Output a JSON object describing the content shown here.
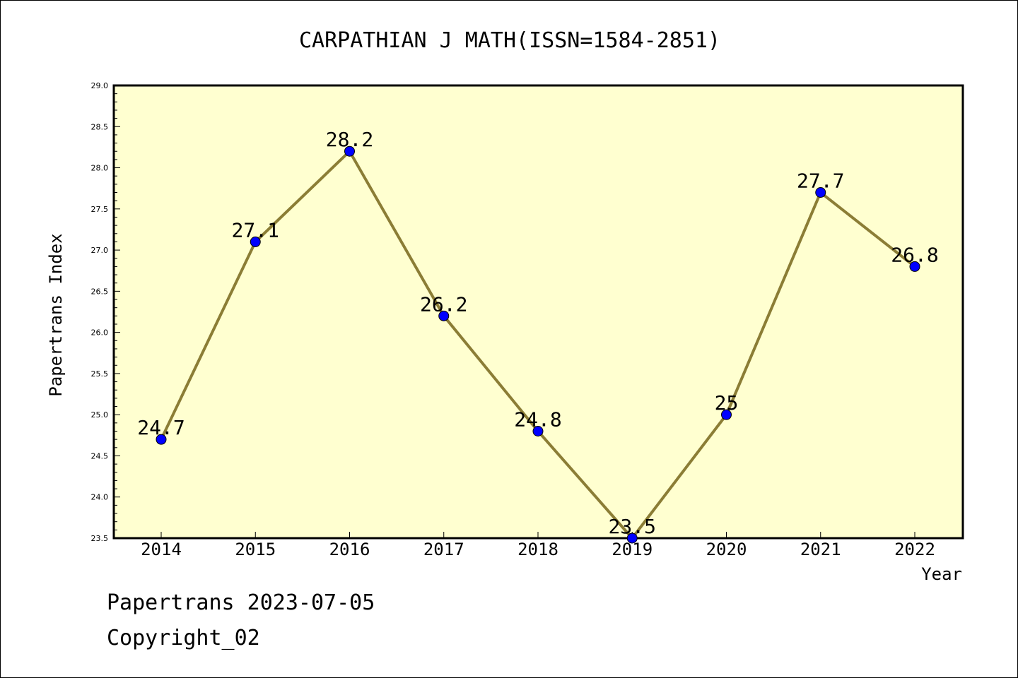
{
  "chart_data": {
    "type": "line",
    "title": "CARPATHIAN J MATH(ISSN=1584-2851)",
    "xlabel": "Year",
    "ylabel": "Papertrans Index",
    "categories": [
      "2014",
      "2015",
      "2016",
      "2017",
      "2018",
      "2019",
      "2020",
      "2021",
      "2022"
    ],
    "values": [
      24.7,
      27.1,
      28.2,
      26.2,
      24.8,
      23.5,
      25,
      27.7,
      26.8
    ],
    "value_labels": [
      "24.7",
      "27.1",
      "28.2",
      "26.2",
      "24.8",
      "23.5",
      "25",
      "27.7",
      "26.8"
    ],
    "ylim": [
      23.5,
      29.0
    ],
    "yticks": [
      "23.5",
      "24.0",
      "24.5",
      "25.0",
      "25.5",
      "26.0",
      "26.5",
      "27.0",
      "27.5",
      "28.0",
      "28.5",
      "29.0"
    ],
    "grid": false,
    "colors": {
      "plot_background": "#ffffd0",
      "line": "#8b7d35",
      "marker": "#0000ff"
    }
  },
  "footer": {
    "line1": "Papertrans 2023-07-05",
    "line2": "Copyright_02"
  }
}
